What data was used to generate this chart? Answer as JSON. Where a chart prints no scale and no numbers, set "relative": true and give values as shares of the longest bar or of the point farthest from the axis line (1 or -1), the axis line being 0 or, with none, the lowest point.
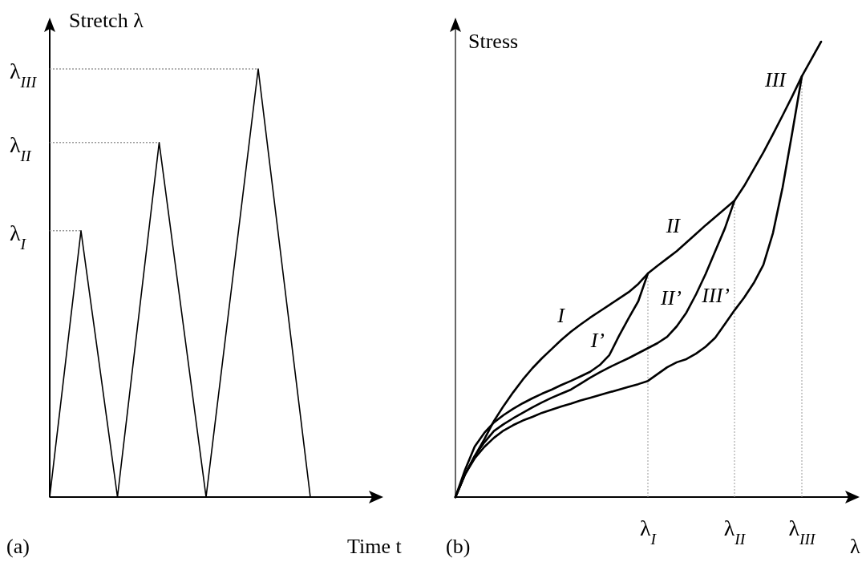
{
  "chart_data": [
    {
      "type": "line",
      "relative": true,
      "ylabel": "Stretch λ",
      "xlabel": "Time t",
      "annotations": [
        "(a)"
      ],
      "categories": [
        null,
        null,
        null,
        null,
        null,
        null,
        null,
        null,
        null,
        null,
        null,
        null,
        null,
        null,
        null,
        null,
        null,
        null,
        null,
        null,
        null,
        null,
        null,
        null,
        null,
        null,
        null,
        null,
        null,
        null,
        null,
        null,
        null,
        null,
        null,
        null,
        null,
        null,
        null,
        null,
        null,
        null,
        null,
        null,
        null,
        null,
        null,
        null,
        null,
        null,
        null,
        null,
        null,
        null,
        null,
        null,
        null,
        null,
        null,
        null,
        null,
        null
      ],
      "series": [
        {
          "color": "#000000",
          "values": [
            0,
            0.104,
            0.207,
            0.311,
            0.415,
            0.518,
            0.622,
            0.533,
            0.444,
            0.356,
            0.267,
            0.178,
            0.089,
            0,
            0.104,
            0.207,
            0.311,
            0.414,
            0.518,
            0.621,
            0.725,
            0.828,
            0.736,
            0.644,
            0.552,
            0.46,
            0.368,
            0.276,
            0.184,
            0.092,
            0,
            0.1,
            0.2,
            0.3,
            0.4,
            0.5,
            0.6,
            0.7,
            0.8,
            0.9,
            1,
            0.9,
            0.8,
            0.7,
            0.6,
            0.5,
            0.4,
            0.3,
            0.2,
            0.1,
            0,
            null,
            null,
            null,
            null,
            null,
            null,
            null,
            null,
            null,
            null,
            null
          ]
        }
      ],
      "ref_lines": [
        {
          "axis": "y",
          "value": 0.622,
          "label": "λ$_{I}$",
          "color": "#999999",
          "line_style": "dotted"
        },
        {
          "axis": "y",
          "value": 0.828,
          "label": "λ$_{II}$",
          "color": "#999999",
          "line_style": "dotted"
        },
        {
          "axis": "y",
          "value": 1,
          "label": "λ$_{III}$",
          "color": "#999999",
          "line_style": "dotted"
        }
      ]
    },
    {
      "type": "line",
      "relative": true,
      "ylabel": "Stress",
      "xlabel": "λ",
      "annotations": [
        "(b)",
        "I",
        "II",
        "III"
      ],
      "categories": [
        null,
        null,
        null,
        null,
        null,
        null,
        null,
        null,
        null,
        null,
        null,
        null,
        null,
        null,
        null,
        null,
        null,
        null,
        null,
        null,
        "λ$_{I}$",
        null,
        null,
        null,
        null,
        null,
        null,
        null,
        null,
        "λ$_{II}$",
        null,
        null,
        null,
        null,
        null,
        null,
        "λ$_{III}$",
        null,
        null,
        null,
        null
      ],
      "series": [
        {
          "color": "#000000",
          "values": [
            0,
            0.05,
            0.09,
            0.127,
            0.167,
            0.2,
            0.23,
            0.258,
            0.283,
            0.305,
            0.325,
            0.345,
            0.363,
            0.379,
            0.394,
            0.408,
            0.422,
            0.436,
            0.45,
            0.468,
            0.491,
            0.508,
            0.524,
            0.54,
            0.559,
            0.578,
            0.597,
            0.615,
            0.633,
            0.651,
            0.683,
            0.72,
            0.757,
            0.797,
            0.838,
            0.88,
            0.924,
            0.962,
            1,
            null,
            null
          ]
        },
        {
          "name": "I’",
          "color": "#000000",
          "values": [
            0,
            0.06,
            0.111,
            0.141,
            0.164,
            0.18,
            0.194,
            0.206,
            0.217,
            0.227,
            0.236,
            0.246,
            0.255,
            0.265,
            0.275,
            0.29,
            0.312,
            0.354,
            0.393,
            0.43,
            0.491,
            null,
            null,
            null,
            null,
            null,
            null,
            null,
            null,
            null,
            null,
            null,
            null,
            null,
            null,
            null,
            null,
            null,
            null,
            null,
            null
          ]
        },
        {
          "name": "II’",
          "color": "#000000",
          "values": [
            0,
            0.05,
            0.09,
            0.12,
            0.145,
            0.16,
            0.173,
            0.185,
            0.197,
            0.208,
            0.218,
            0.227,
            0.236,
            0.249,
            0.262,
            0.274,
            0.285,
            0.295,
            0.305,
            0.316,
            0.327,
            0.338,
            0.352,
            0.375,
            0.405,
            0.445,
            0.49,
            0.54,
            0.59,
            0.651,
            null,
            null,
            null,
            null,
            null,
            null,
            null,
            null,
            null,
            null,
            null
          ]
        },
        {
          "name": "III’",
          "color": "#000000",
          "values": [
            0,
            0.05,
            0.085,
            0.11,
            0.13,
            0.146,
            0.158,
            0.168,
            0.176,
            0.185,
            0.192,
            0.199,
            0.205,
            0.212,
            0.218,
            0.224,
            0.23,
            0.236,
            0.242,
            0.248,
            0.255,
            0.27,
            0.285,
            0.296,
            0.303,
            0.315,
            0.33,
            0.35,
            0.38,
            0.41,
            0.438,
            0.47,
            0.51,
            0.58,
            0.68,
            0.8,
            0.924,
            null,
            null,
            null,
            null
          ]
        }
      ],
      "ref_lines": [
        {
          "axis": "x",
          "value": "λ$_{I}$",
          "color": "#999999",
          "line_style": "dotted"
        },
        {
          "axis": "x",
          "value": "λ$_{II}$",
          "color": "#999999",
          "line_style": "dotted"
        },
        {
          "axis": "x",
          "value": "λ$_{III}$",
          "color": "#999999",
          "line_style": "dotted"
        }
      ]
    }
  ]
}
